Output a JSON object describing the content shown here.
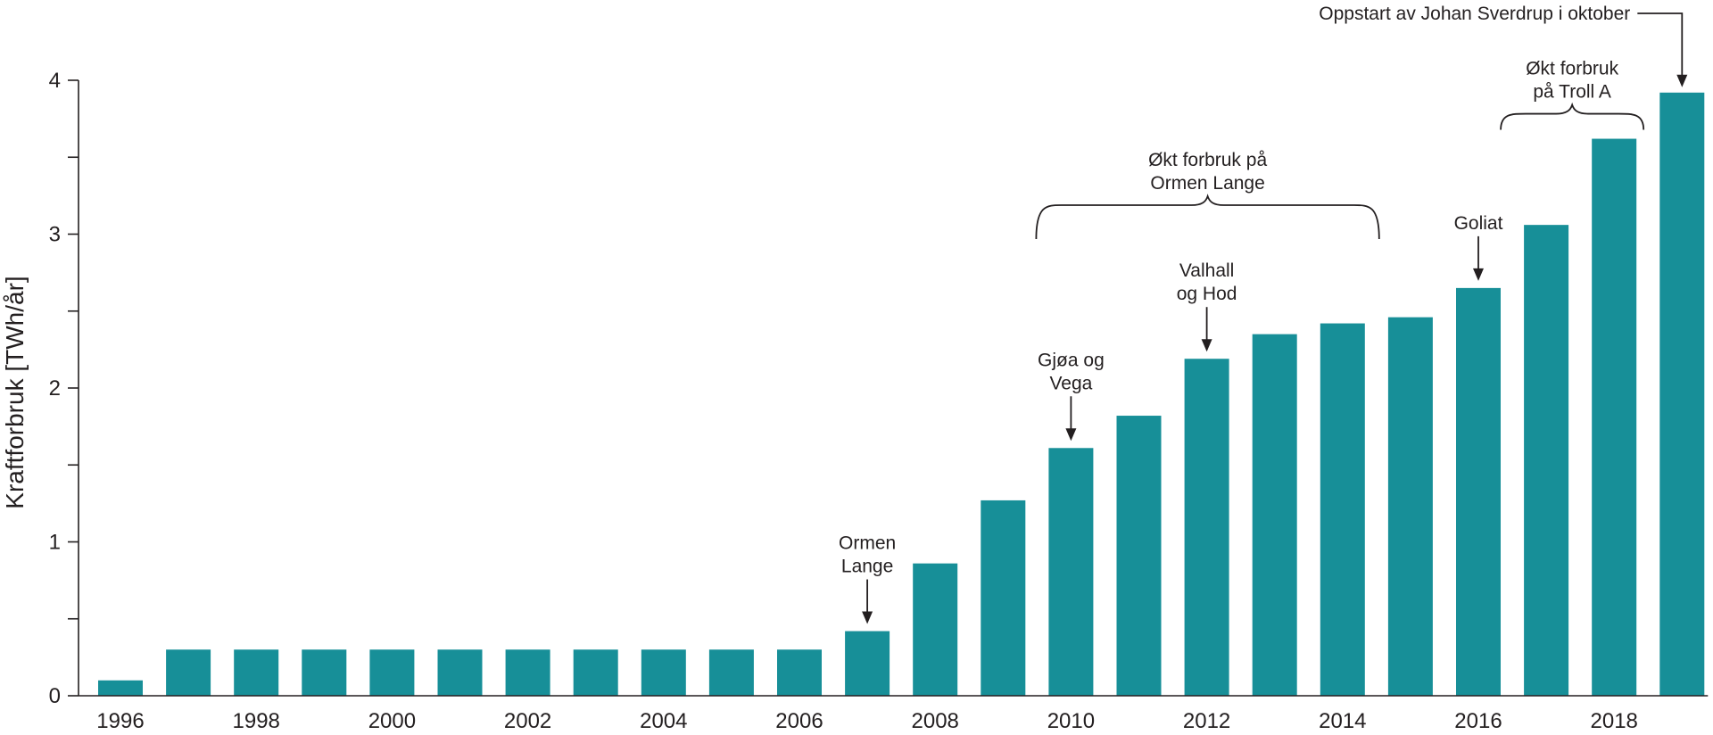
{
  "chart_data": {
    "type": "bar",
    "ylabel": "Kraftforbruk [TWh/år]",
    "xlabel": "",
    "ylim": [
      0,
      4
    ],
    "yticks": [
      0,
      1,
      2,
      3,
      4
    ],
    "y_minor_ticks": [
      0.5,
      1.5,
      2.5,
      3.5
    ],
    "grid": false,
    "categories": [
      "1996",
      "1997",
      "1998",
      "1999",
      "2000",
      "2001",
      "2002",
      "2003",
      "2004",
      "2005",
      "2006",
      "2007",
      "2008",
      "2009",
      "2010",
      "2011",
      "2012",
      "2013",
      "2014",
      "2015",
      "2016",
      "2017",
      "2018",
      "2019"
    ],
    "x_tick_labels": [
      "1996",
      "1998",
      "2000",
      "2002",
      "2004",
      "2006",
      "2008",
      "2010",
      "2012",
      "2014",
      "2016",
      "2018"
    ],
    "values": [
      0.1,
      0.3,
      0.3,
      0.3,
      0.3,
      0.3,
      0.3,
      0.3,
      0.3,
      0.3,
      0.3,
      0.42,
      0.86,
      1.27,
      1.61,
      1.82,
      2.19,
      2.35,
      2.42,
      2.46,
      2.65,
      3.06,
      3.62,
      3.92
    ],
    "bar_color": "#178f98",
    "annotations": [
      {
        "lines": [
          "Ormen",
          "Lange"
        ],
        "target": "2007",
        "kind": "arrow"
      },
      {
        "lines": [
          "Gjøa og",
          "Vega"
        ],
        "target": "2010",
        "kind": "arrow"
      },
      {
        "lines": [
          "Valhall",
          "og Hod"
        ],
        "target": "2012",
        "kind": "arrow"
      },
      {
        "lines": [
          "Goliat"
        ],
        "target": "2016",
        "kind": "arrow"
      },
      {
        "lines": [
          "Økt forbruk på",
          "Ormen Lange"
        ],
        "range": [
          "2010",
          "2014"
        ],
        "kind": "brace"
      },
      {
        "lines": [
          "Økt forbruk",
          "på Troll A"
        ],
        "range": [
          "2017",
          "2018"
        ],
        "kind": "brace"
      },
      {
        "lines": [
          "Oppstart av Johan Sverdrup i oktober"
        ],
        "target": "2019",
        "kind": "elbow-arrow"
      }
    ]
  }
}
